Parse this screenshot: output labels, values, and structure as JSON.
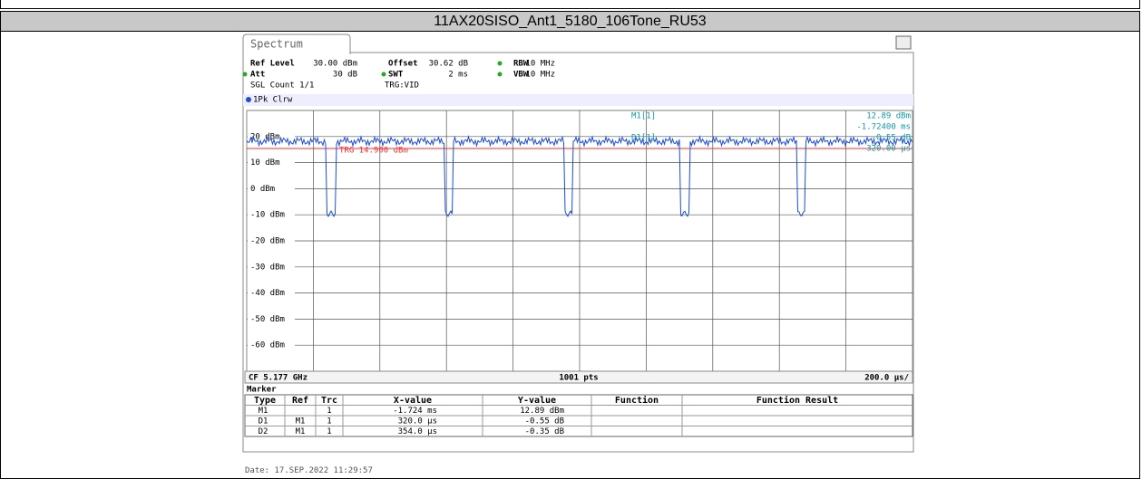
{
  "header": {
    "title": "11AX20SISO_Ant1_5180_106Tone_RU53"
  },
  "screenshot": {
    "tab": "Spectrum",
    "settings": [
      [
        "Ref Level",
        "30.00 dBm",
        "Offset",
        "30.62 dB",
        "RBW",
        "10 MHz"
      ],
      [
        "Att",
        "30 dB",
        "SWT",
        "2 ms",
        "VBW",
        "10 MHz"
      ]
    ],
    "count": "SGL Count 1/1",
    "trigger": "TRG:VID",
    "trace": "1Pk Clrw",
    "marker_info": {
      "m1_name": "M1[1]",
      "m1_level": "12.89 dBm",
      "m1_time": "-1.72400 ms",
      "d1_name": "D1[1]",
      "d1_level": "-0.55 dB",
      "d1_time": "320.00 µs"
    },
    "trigger_line": "TRG 14.900 dBm",
    "y_labels": [
      "20 dBm",
      "10 dBm",
      "0 dBm",
      "-10 dBm",
      "-20 dBm",
      "-30 dBm",
      "-40 dBm",
      "-50 dBm",
      "-60 dBm"
    ],
    "footer": {
      "center_freq": "CF 5.177 GHz",
      "points": "1001 pts",
      "span": "200.0 µs/"
    },
    "marker_table": {
      "title": "Marker",
      "columns": [
        "Type",
        "Ref",
        "Trc",
        "X-value",
        "Y-value",
        "Function",
        "Function Result"
      ],
      "rows": [
        [
          "M1",
          "",
          "1",
          "-1.724 ms",
          "12.89 dBm",
          "",
          ""
        ],
        [
          "D1",
          "M1",
          "1",
          "320.0 µs",
          "-0.55 dB",
          "",
          ""
        ],
        [
          "D2",
          "M1",
          "1",
          "354.0 µs",
          "-0.35 dB",
          "",
          ""
        ]
      ]
    }
  },
  "date": "Date: 17.SEP.2022  11:29:57"
}
